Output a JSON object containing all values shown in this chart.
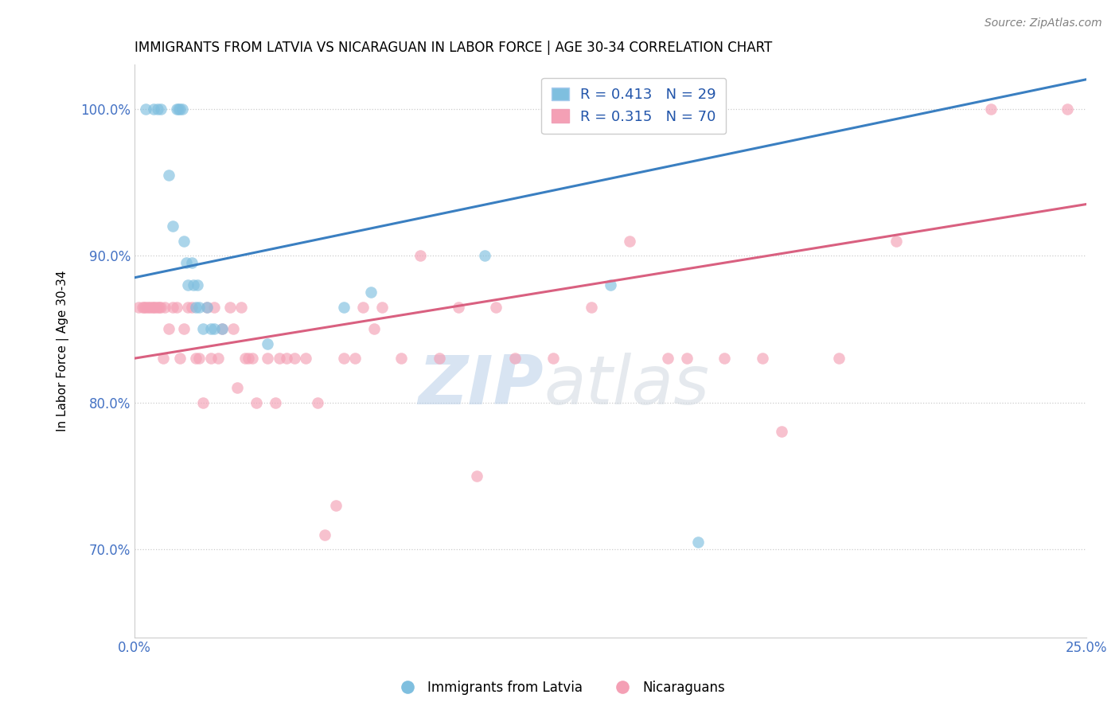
{
  "title": "IMMIGRANTS FROM LATVIA VS NICARAGUAN IN LABOR FORCE | AGE 30-34 CORRELATION CHART",
  "source": "Source: ZipAtlas.com",
  "ylabel": "In Labor Force | Age 30-34",
  "xlim": [
    0.0,
    25.0
  ],
  "ylim": [
    64.0,
    103.0
  ],
  "xticks": [
    0.0,
    25.0
  ],
  "xticklabels": [
    "0.0%",
    "25.0%"
  ],
  "ytick_positions": [
    70.0,
    80.0,
    90.0,
    100.0
  ],
  "ytick_labels": [
    "70.0%",
    "80.0%",
    "90.0%",
    "100.0%"
  ],
  "blue_R": 0.413,
  "blue_N": 29,
  "pink_R": 0.315,
  "pink_N": 70,
  "blue_color": "#7fbfdf",
  "pink_color": "#f4a0b5",
  "blue_line_color": "#3a7fc1",
  "pink_line_color": "#d96080",
  "legend_label_blue": "Immigrants from Latvia",
  "legend_label_pink": "Nicaraguans",
  "blue_x": [
    0.3,
    0.5,
    0.6,
    0.7,
    0.9,
    1.0,
    1.1,
    1.15,
    1.2,
    1.25,
    1.3,
    1.35,
    1.4,
    1.5,
    1.55,
    1.6,
    1.65,
    1.7,
    1.8,
    1.9,
    2.0,
    2.1,
    2.3,
    3.5,
    5.5,
    6.2,
    9.2,
    12.5,
    14.8
  ],
  "blue_y": [
    100.0,
    100.0,
    100.0,
    100.0,
    95.5,
    92.0,
    100.0,
    100.0,
    100.0,
    100.0,
    91.0,
    89.5,
    88.0,
    89.5,
    88.0,
    86.5,
    88.0,
    86.5,
    85.0,
    86.5,
    85.0,
    85.0,
    85.0,
    84.0,
    86.5,
    87.5,
    90.0,
    88.0,
    70.5
  ],
  "pink_x": [
    0.1,
    0.2,
    0.25,
    0.3,
    0.35,
    0.4,
    0.45,
    0.5,
    0.55,
    0.6,
    0.65,
    0.7,
    0.75,
    0.8,
    0.9,
    1.0,
    1.1,
    1.2,
    1.3,
    1.4,
    1.5,
    1.6,
    1.7,
    1.8,
    1.9,
    2.0,
    2.1,
    2.2,
    2.3,
    2.5,
    2.6,
    2.7,
    2.8,
    2.9,
    3.0,
    3.1,
    3.2,
    3.5,
    3.7,
    3.8,
    4.0,
    4.2,
    4.5,
    4.8,
    5.0,
    5.3,
    5.5,
    5.8,
    6.0,
    6.3,
    6.5,
    7.0,
    7.5,
    8.0,
    8.5,
    9.0,
    9.5,
    10.0,
    11.0,
    12.0,
    13.0,
    14.0,
    14.5,
    15.5,
    16.5,
    17.0,
    18.5,
    20.0,
    22.5,
    24.5
  ],
  "pink_y": [
    86.5,
    86.5,
    86.5,
    86.5,
    86.5,
    86.5,
    86.5,
    86.5,
    86.5,
    86.5,
    86.5,
    86.5,
    83.0,
    86.5,
    85.0,
    86.5,
    86.5,
    83.0,
    85.0,
    86.5,
    86.5,
    83.0,
    83.0,
    80.0,
    86.5,
    83.0,
    86.5,
    83.0,
    85.0,
    86.5,
    85.0,
    81.0,
    86.5,
    83.0,
    83.0,
    83.0,
    80.0,
    83.0,
    80.0,
    83.0,
    83.0,
    83.0,
    83.0,
    80.0,
    71.0,
    73.0,
    83.0,
    83.0,
    86.5,
    85.0,
    86.5,
    83.0,
    90.0,
    83.0,
    86.5,
    75.0,
    86.5,
    83.0,
    83.0,
    86.5,
    91.0,
    83.0,
    83.0,
    83.0,
    83.0,
    78.0,
    83.0,
    91.0,
    100.0,
    100.0
  ],
  "blue_trendline_x": [
    0.0,
    25.0
  ],
  "blue_trendline_y": [
    88.5,
    102.0
  ],
  "pink_trendline_x": [
    0.0,
    25.0
  ],
  "pink_trendline_y": [
    83.0,
    93.5
  ]
}
